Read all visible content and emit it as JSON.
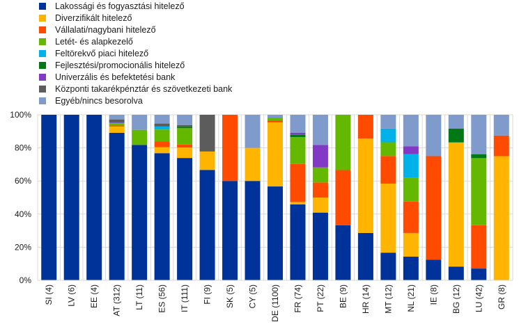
{
  "chart_data": {
    "type": "bar",
    "stacked": true,
    "title": "",
    "xlabel": "",
    "ylabel": "",
    "ylim": [
      0,
      100
    ],
    "yticks": [
      "0%",
      "20%",
      "40%",
      "60%",
      "80%",
      "100%"
    ],
    "grid": true,
    "legend_position": "top-left",
    "categories": [
      "SI (4)",
      "LV (6)",
      "EE (4)",
      "AT (312)",
      "LT (11)",
      "ES (56)",
      "IT (111)",
      "FI (9)",
      "SK (5)",
      "CY (5)",
      "DE (1100)",
      "FR (74)",
      "PT (22)",
      "BE (9)",
      "HR (14)",
      "MT (12)",
      "NL (21)",
      "IE (8)",
      "BG (12)",
      "LU (42)",
      "GR (8)"
    ],
    "series": [
      {
        "name": "Lakossági és fogyasztási hitelező",
        "color": "#003399",
        "values": [
          100,
          100,
          100,
          89.1,
          81.8,
          76.8,
          73.9,
          66.7,
          60,
          60,
          56.7,
          45.9,
          40.9,
          33.3,
          28.6,
          16.7,
          14.3,
          12.5,
          8.3,
          7.1,
          0
        ]
      },
      {
        "name": "Diverzifikált hitelező",
        "color": "#FFB400",
        "values": [
          0,
          0,
          0,
          3.8,
          0,
          3.6,
          6.3,
          11.1,
          0,
          20,
          38.7,
          1.4,
          9.1,
          0,
          57.1,
          41.7,
          14.3,
          0,
          75,
          0,
          75
        ]
      },
      {
        "name": "Vállalati/nagybani hitelező",
        "color": "#FF4B00",
        "values": [
          0,
          0,
          0,
          0.6,
          0,
          3.6,
          1.8,
          0,
          40,
          0,
          1.2,
          23.0,
          9.1,
          33.3,
          14.3,
          16.7,
          19.0,
          62.5,
          0,
          26.2,
          12.5
        ]
      },
      {
        "name": "Letét- és alapkezelő",
        "color": "#65B800",
        "values": [
          0,
          0,
          0,
          1.3,
          9.1,
          7.1,
          9.9,
          0,
          0,
          0,
          1.7,
          16.2,
          9.1,
          33.4,
          0,
          8.3,
          14.3,
          0,
          0,
          40.5,
          0
        ]
      },
      {
        "name": "Feltörekvő piaci hitelező",
        "color": "#00B1EA",
        "values": [
          0,
          0,
          0,
          0.3,
          0,
          1.8,
          0,
          0,
          0,
          0,
          0,
          0,
          0,
          0,
          0,
          8.3,
          14.3,
          0,
          0,
          0,
          0
        ]
      },
      {
        "name": "Fejlesztési/promocionális hitelező",
        "color": "#007816",
        "values": [
          0,
          0,
          0,
          0,
          0,
          0,
          0.9,
          0,
          0,
          0,
          0,
          1.4,
          0,
          0,
          0,
          0,
          0,
          0,
          8.4,
          2.4,
          0
        ]
      },
      {
        "name": "Univerzális és befektetési bank",
        "color": "#8139C6",
        "values": [
          0,
          0,
          0,
          0.3,
          0,
          0,
          0,
          0,
          0,
          0,
          0,
          1.3,
          13.6,
          0,
          0,
          0,
          4.8,
          0,
          0,
          0,
          0
        ]
      },
      {
        "name": "Központi takarékpénztár és szövetkezeti bank",
        "color": "#5C5C5C",
        "values": [
          0,
          0,
          0,
          1.8,
          0,
          1.8,
          0.9,
          22.2,
          0,
          0,
          0,
          0,
          0,
          0,
          0,
          0,
          0,
          0,
          0,
          0,
          0
        ]
      },
      {
        "name": "Egyéb/nincs besorolva",
        "color": "#7F9BCC",
        "values": [
          0,
          0,
          0,
          2.8,
          9.1,
          5.3,
          6.3,
          0,
          0,
          20,
          1.7,
          10.8,
          18.2,
          0,
          0,
          8.3,
          19.0,
          25,
          8.3,
          23.8,
          12.5
        ]
      }
    ]
  }
}
